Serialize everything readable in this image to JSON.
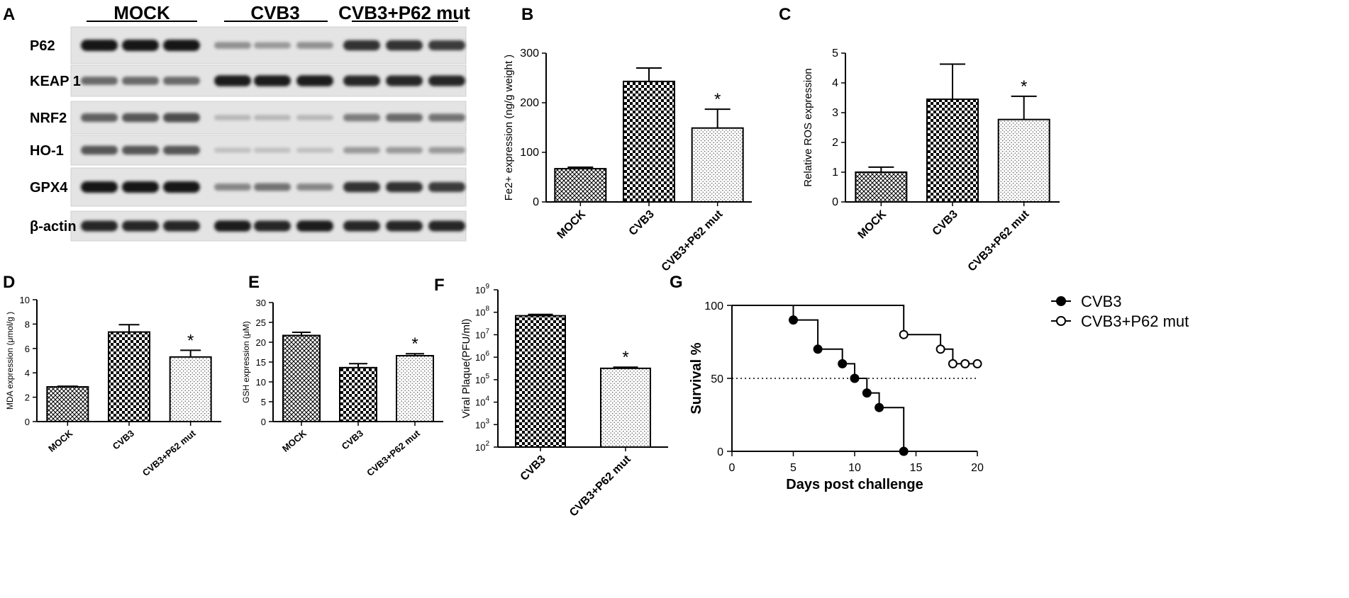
{
  "panels": {
    "A": "A",
    "B": "B",
    "C": "C",
    "D": "D",
    "E": "E",
    "F": "F",
    "G": "G"
  },
  "blot": {
    "groups": [
      "MOCK",
      "CVB3",
      "CVB3+P62 mut"
    ],
    "rows": [
      {
        "label": "P62",
        "intensity": [
          1.0,
          1.0,
          1.0,
          0.35,
          0.3,
          0.35,
          0.85,
          0.85,
          0.8
        ]
      },
      {
        "label": "KEAP 1",
        "intensity": [
          0.55,
          0.55,
          0.55,
          0.95,
          0.95,
          0.95,
          0.9,
          0.9,
          0.9
        ]
      },
      {
        "label": "NRF2",
        "intensity": [
          0.6,
          0.65,
          0.7,
          0.15,
          0.15,
          0.15,
          0.45,
          0.55,
          0.5
        ]
      },
      {
        "label": "HO-1",
        "intensity": [
          0.65,
          0.65,
          0.65,
          0.1,
          0.1,
          0.1,
          0.3,
          0.3,
          0.3
        ]
      },
      {
        "label": "GPX4",
        "intensity": [
          1.0,
          1.0,
          1.0,
          0.4,
          0.5,
          0.4,
          0.85,
          0.85,
          0.8
        ]
      },
      {
        "label": "β-actin",
        "intensity": [
          0.9,
          0.9,
          0.9,
          0.95,
          0.9,
          0.95,
          0.9,
          0.9,
          0.9
        ]
      }
    ]
  },
  "colors": {
    "ink": "#000000",
    "dark": "#1a1a1a",
    "light": "#ffffff"
  },
  "chart_data": [
    {
      "id": "B",
      "type": "bar",
      "categories": [
        "MOCK",
        "CVB3",
        "CVB3+P62 mut"
      ],
      "values": [
        67,
        243,
        149
      ],
      "errors": [
        3,
        27,
        38
      ],
      "significance": [
        "",
        "",
        "*"
      ],
      "ylabel": "Fe2+ expression (ng/g weight )",
      "ylim": [
        0,
        300
      ],
      "yticks": [
        0,
        100,
        200,
        300
      ]
    },
    {
      "id": "C",
      "type": "bar",
      "categories": [
        "MOCK",
        "CVB3",
        "CVB3+P62 mut"
      ],
      "values": [
        1.0,
        3.45,
        2.77
      ],
      "errors": [
        0.17,
        1.18,
        0.78
      ],
      "significance": [
        "",
        "",
        "*"
      ],
      "ylabel": "Relative ROS expression",
      "ylim": [
        0,
        5
      ],
      "yticks": [
        0,
        1,
        2,
        3,
        4,
        5
      ]
    },
    {
      "id": "D",
      "type": "bar",
      "categories": [
        "MOCK",
        "CVB3",
        "CVB3+P62 mut"
      ],
      "values": [
        2.85,
        7.35,
        5.3
      ],
      "errors": [
        0.05,
        0.6,
        0.55
      ],
      "significance": [
        "",
        "",
        "*"
      ],
      "ylabel": "MDA expression (μmol/g )",
      "ylim": [
        0,
        10
      ],
      "yticks": [
        0,
        2,
        4,
        6,
        8,
        10
      ]
    },
    {
      "id": "E",
      "type": "bar",
      "categories": [
        "MOCK",
        "CVB3",
        "CVB3+P62 mut"
      ],
      "values": [
        21.7,
        13.6,
        16.6
      ],
      "errors": [
        0.8,
        1.0,
        0.5
      ],
      "significance": [
        "",
        "",
        "*"
      ],
      "ylabel": "GSH expression (μM)",
      "ylim": [
        0,
        30
      ],
      "yticks": [
        0,
        5,
        10,
        15,
        20,
        25,
        30
      ]
    },
    {
      "id": "F",
      "type": "bar",
      "yscale": "log",
      "categories": [
        "CVB3",
        "CVB3+P62 mut"
      ],
      "values": [
        70000000,
        320000
      ],
      "errors": [
        10000000,
        40000
      ],
      "significance": [
        "",
        "*"
      ],
      "ylabel": "Viral Plaque(PFU/ml)",
      "ylim": [
        100,
        1000000000
      ],
      "yticks": [
        {
          "base": "10",
          "exp": "2"
        },
        {
          "base": "10",
          "exp": "3"
        },
        {
          "base": "10",
          "exp": "4"
        },
        {
          "base": "10",
          "exp": "5"
        },
        {
          "base": "10",
          "exp": "6"
        },
        {
          "base": "10",
          "exp": "7"
        },
        {
          "base": "10",
          "exp": "8"
        },
        {
          "base": "10",
          "exp": "9"
        }
      ]
    },
    {
      "id": "G",
      "type": "line",
      "subtype": "kaplan-meier",
      "xlabel": "Days post challenge",
      "ylabel": "Survival %",
      "xlim": [
        0,
        20
      ],
      "ylim": [
        0,
        100
      ],
      "xticks": [
        0,
        5,
        10,
        15,
        20
      ],
      "yticks": [
        0,
        50,
        100
      ],
      "reference_line": 50,
      "series": [
        {
          "name": "CVB3",
          "marker": "filled",
          "steps": [
            [
              0,
              100
            ],
            [
              5,
              90
            ],
            [
              7,
              70
            ],
            [
              9,
              60
            ],
            [
              10,
              50
            ],
            [
              11,
              40
            ],
            [
              12,
              30
            ],
            [
              14,
              0
            ]
          ]
        },
        {
          "name": "CVB3+P62 mut",
          "marker": "open",
          "steps": [
            [
              0,
              100
            ],
            [
              14,
              80
            ],
            [
              17,
              70
            ],
            [
              18,
              60
            ],
            [
              19,
              60
            ],
            [
              20,
              60
            ]
          ]
        }
      ],
      "legend_position": "top-right"
    }
  ]
}
